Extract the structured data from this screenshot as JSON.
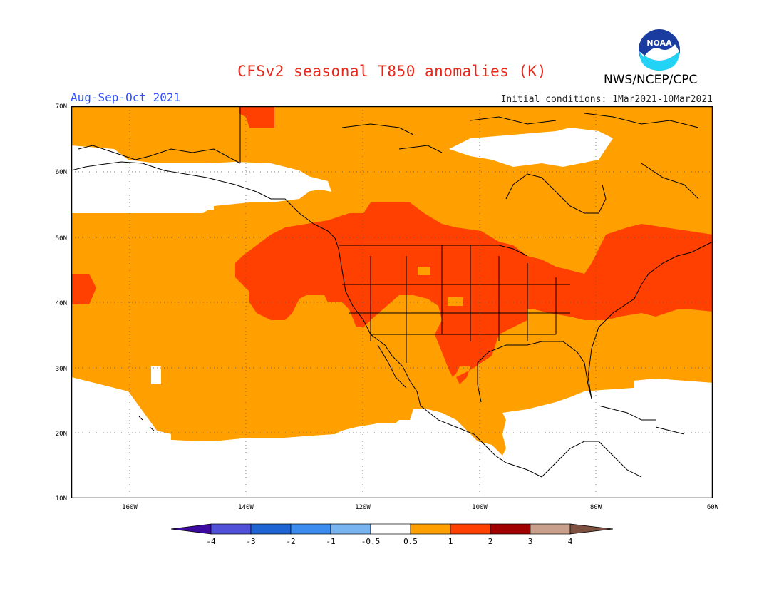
{
  "header": {
    "title": "CFSv2 seasonal T850 anomalies (K)",
    "season": "Aug-Sep-Oct 2021",
    "initial_conditions": "Initial conditions: 1Mar2021-10Mar2021",
    "agency": "NWS/NCEP/CPC",
    "logo_text": "NOAA"
  },
  "map": {
    "lat_labels": [
      "70N",
      "60N",
      "50N",
      "40N",
      "30N",
      "20N",
      "10N"
    ],
    "lon_labels": [
      "160W",
      "140W",
      "120W",
      "100W",
      "80W",
      "60W"
    ],
    "colors": {
      "neutral": "#ffffff",
      "warm1": "#ffa000",
      "warm2": "#ff4000",
      "coast": "#000000"
    }
  },
  "colorbar": {
    "labels": [
      "-4",
      "-3",
      "-2",
      "-1",
      "-0.5",
      "0.5",
      "1",
      "2",
      "3",
      "4"
    ],
    "colors": [
      "#3d0aa0",
      "#5050d8",
      "#1e64d2",
      "#3c8cf0",
      "#78b4f0",
      "#ffffff",
      "#ffa000",
      "#ff4000",
      "#a00000",
      "#c8a08c",
      "#7d5040"
    ]
  }
}
